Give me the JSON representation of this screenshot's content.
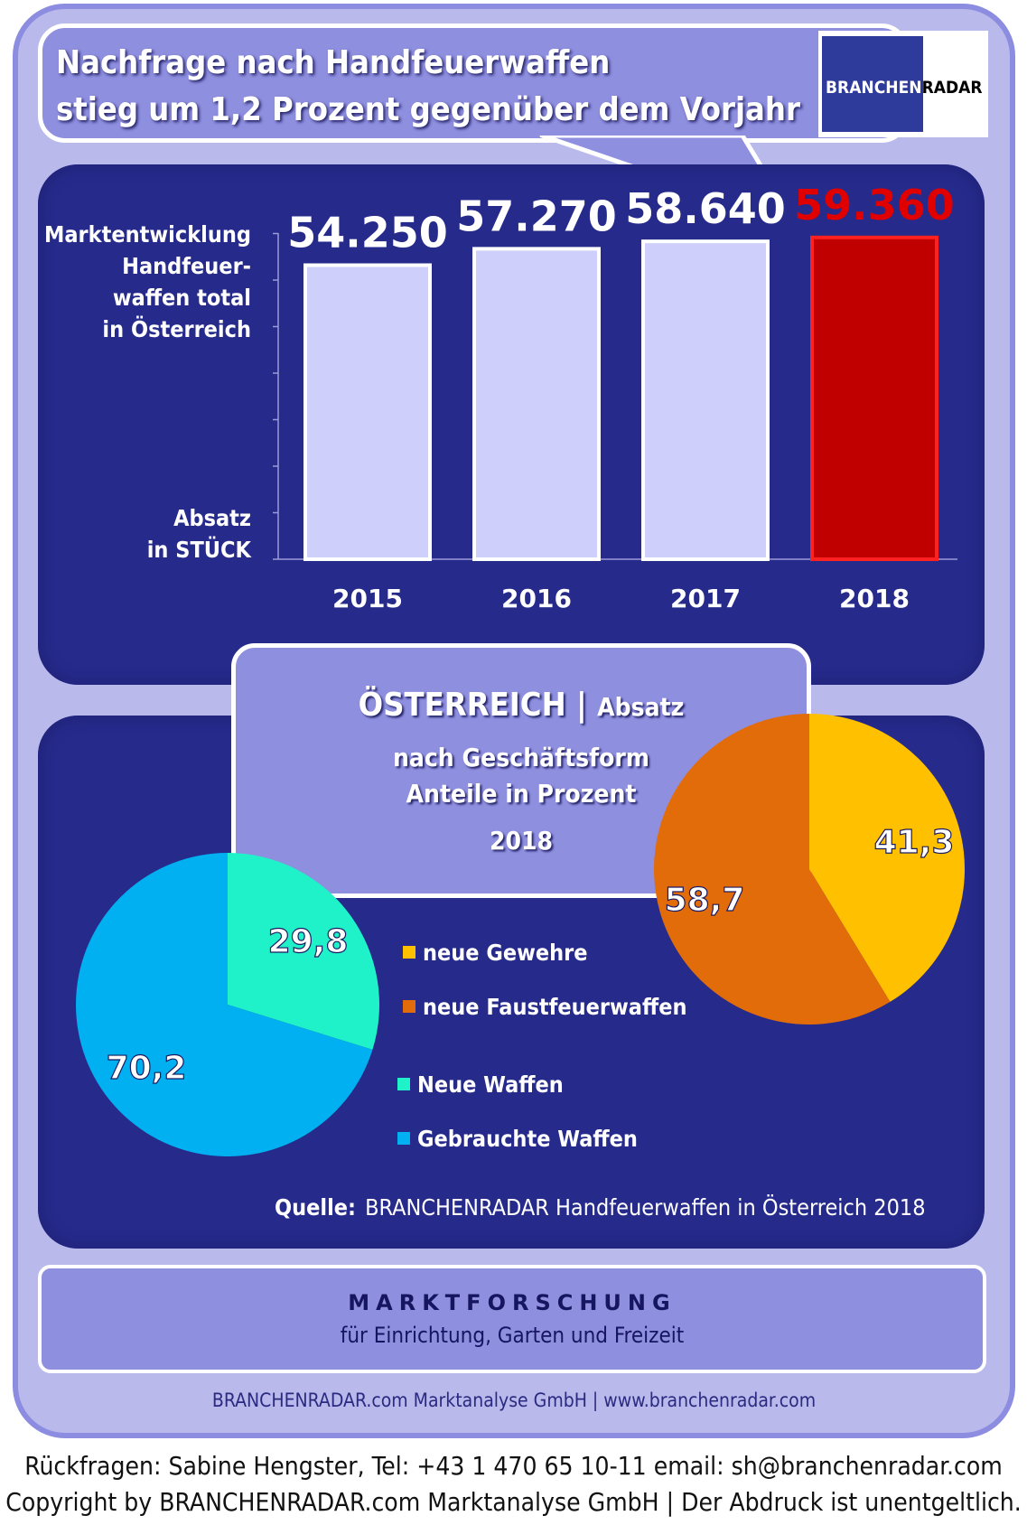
{
  "header": {
    "headline_line1": "Nachfrage nach Handfeuerwaffen",
    "headline_line2": "stieg um 1,2 Prozent gegenüber dem Vorjahr",
    "logo_part1": "BRANCHEN",
    "logo_part2": "RADAR"
  },
  "bar_section": {
    "label_lines": [
      "Marktentwicklung",
      "Handfeuer-",
      "waffen total",
      "in Österreich"
    ],
    "unit_lines": [
      "Absatz",
      "in STÜCK"
    ]
  },
  "info_box": {
    "title_main": "ÖSTERREICH",
    "title_sep": "|",
    "title_sub": "Absatz",
    "line2": "nach Geschäftsform",
    "line3": "Anteile in Prozent",
    "year": "2018"
  },
  "legend": {
    "neue_gewehre": "neue Gewehre",
    "neue_faustfeuerwaffen": "neue Faustfeuerwaffen",
    "neue_waffen": "Neue Waffen",
    "gebrauchte_waffen": "Gebrauchte Waffen"
  },
  "source": {
    "label": "Quelle:",
    "text": "BRANCHENRADAR Handfeuerwaffen in Österreich 2018"
  },
  "footer": {
    "title": "MARKTFORSCHUNG",
    "subtitle": "für Einrichtung, Garten und Freizeit",
    "company": "BRANCHENRADAR.com Marktanalyse GmbH | www.branchenradar.com",
    "contact": "Rückfragen: Sabine Hengster, Tel: +43 1 470 65 10-11 email: sh@branchenradar.com",
    "copyright": "Copyright by BRANCHENRADAR.com  Marktanalyse GmbH | Der Abdruck ist unentgeltlich."
  },
  "colors": {
    "bar_default": "#cfcffc",
    "bar_highlight": "#c00000",
    "label_highlight": "#e00000",
    "neue_gewehre": "#ffc000",
    "neue_faustfeuerwaffen": "#e26b0a",
    "neue_waffen": "#1ff2c8",
    "gebrauchte_waffen": "#00b0f0"
  },
  "chart_data": [
    {
      "type": "bar",
      "title": "Marktentwicklung Handfeuerwaffen total in Österreich",
      "ylabel": "Absatz in STÜCK",
      "categories": [
        "2015",
        "2016",
        "2017",
        "2018"
      ],
      "values": [
        54250,
        57270,
        58640,
        59360
      ],
      "value_labels": [
        "54.250",
        "57.270",
        "58.640",
        "59.360"
      ],
      "highlight_index": 3
    },
    {
      "type": "pie",
      "title": "ÖSTERREICH | Absatz nach Geschäftsform Anteile in Prozent 2018",
      "slices": [
        {
          "label": "Neue Waffen",
          "value": 29.8,
          "value_label": "29,8"
        },
        {
          "label": "Gebrauchte Waffen",
          "value": 70.2,
          "value_label": "70,2"
        }
      ]
    },
    {
      "type": "pie",
      "title": "ÖSTERREICH | Absatz nach Geschäftsform Anteile in Prozent 2018",
      "slices": [
        {
          "label": "neue Gewehre",
          "value": 41.3,
          "value_label": "41,3"
        },
        {
          "label": "neue Faustfeuerwaffen",
          "value": 58.7,
          "value_label": "58,7"
        }
      ]
    }
  ]
}
